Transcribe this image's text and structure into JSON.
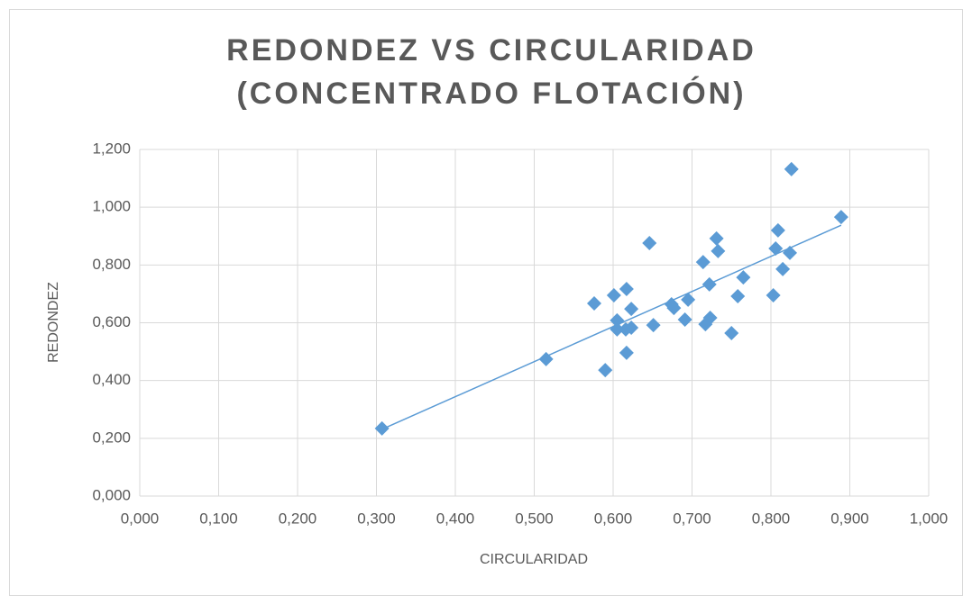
{
  "chart_data": {
    "type": "scatter",
    "title": [
      "REDONDEZ VS CIRCULARIDAD",
      "(CONCENTRADO FLOTACIÓN)"
    ],
    "x_label": "CIRCULARIDAD",
    "y_label": "REDONDEZ",
    "color": "#5b9bd5",
    "trendline": true,
    "grid": true,
    "xlim": [
      0,
      1
    ],
    "ylim": [
      0,
      1.2
    ],
    "xticks": [
      {
        "value": 0,
        "label": "0,000"
      },
      {
        "value": 0.1,
        "label": "0,100"
      },
      {
        "value": 0.2,
        "label": "0,200"
      },
      {
        "value": 0.3,
        "label": "0,300"
      },
      {
        "value": 0.4,
        "label": "0,400"
      },
      {
        "value": 0.5,
        "label": "0,500"
      },
      {
        "value": 0.6,
        "label": "0,600"
      },
      {
        "value": 0.7,
        "label": "0,700"
      },
      {
        "value": 0.8,
        "label": "0,800"
      },
      {
        "value": 0.9,
        "label": "0,900"
      },
      {
        "value": 1,
        "label": "1,000"
      }
    ],
    "yticks": [
      {
        "value": 0,
        "label": "0,000"
      },
      {
        "value": 0.2,
        "label": "0,200"
      },
      {
        "value": 0.4,
        "label": "0,400"
      },
      {
        "value": 0.6,
        "label": "0,600"
      },
      {
        "value": 0.8,
        "label": "0,800"
      },
      {
        "value": 1,
        "label": "1,000"
      },
      {
        "value": 1.2,
        "label": "1,200"
      }
    ],
    "x": [
      0.307,
      0.515,
      0.59,
      0.617,
      0.576,
      0.601,
      0.646,
      0.617,
      0.605,
      0.605,
      0.616,
      0.623,
      0.623,
      0.674,
      0.677,
      0.695,
      0.691,
      0.651,
      0.714,
      0.731,
      0.733,
      0.722,
      0.717,
      0.723,
      0.75,
      0.758,
      0.765,
      0.803,
      0.806,
      0.809,
      0.815,
      0.824,
      0.826,
      0.889
    ],
    "values": [
      0.234,
      0.474,
      0.436,
      0.496,
      0.667,
      0.695,
      0.876,
      0.717,
      0.608,
      0.577,
      0.577,
      0.583,
      0.648,
      0.664,
      0.651,
      0.68,
      0.611,
      0.592,
      0.81,
      0.892,
      0.848,
      0.733,
      0.595,
      0.617,
      0.564,
      0.692,
      0.757,
      0.695,
      0.857,
      0.92,
      0.786,
      0.842,
      1.132,
      0.966
    ]
  }
}
